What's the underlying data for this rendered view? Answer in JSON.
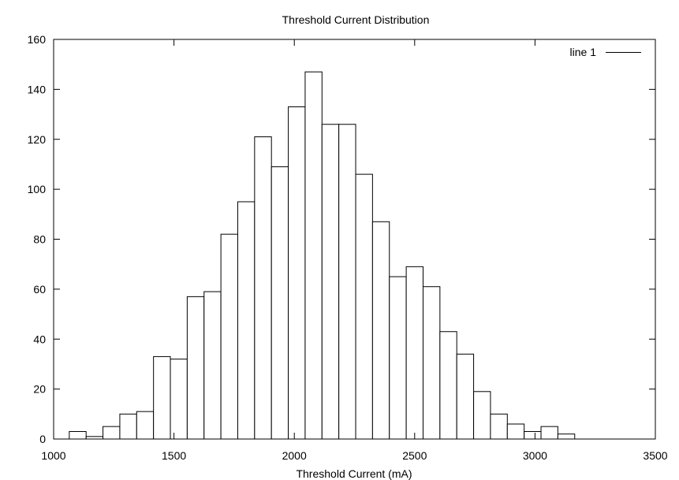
{
  "chart_data": {
    "type": "bar",
    "title": "Threshold Current Distribution",
    "xlabel": "Threshold Current (mA)",
    "ylabel": "",
    "xlim": [
      1000,
      3500
    ],
    "ylim": [
      0,
      160
    ],
    "xticks": [
      1000,
      1500,
      2000,
      2500,
      3000,
      3500
    ],
    "yticks": [
      0,
      20,
      40,
      60,
      80,
      100,
      120,
      140,
      160
    ],
    "bin_width": 70,
    "legend": {
      "position": "top-right",
      "entries": [
        "line 1"
      ]
    },
    "grid": false,
    "series": [
      {
        "name": "line 1",
        "bins": [
          {
            "x0": 1065,
            "x1": 1135,
            "value": 3
          },
          {
            "x0": 1135,
            "x1": 1205,
            "value": 1
          },
          {
            "x0": 1205,
            "x1": 1275,
            "value": 5
          },
          {
            "x0": 1275,
            "x1": 1345,
            "value": 10
          },
          {
            "x0": 1345,
            "x1": 1415,
            "value": 11
          },
          {
            "x0": 1415,
            "x1": 1485,
            "value": 33
          },
          {
            "x0": 1485,
            "x1": 1555,
            "value": 32
          },
          {
            "x0": 1555,
            "x1": 1625,
            "value": 57
          },
          {
            "x0": 1625,
            "x1": 1695,
            "value": 59
          },
          {
            "x0": 1695,
            "x1": 1765,
            "value": 82
          },
          {
            "x0": 1765,
            "x1": 1835,
            "value": 95
          },
          {
            "x0": 1835,
            "x1": 1905,
            "value": 121
          },
          {
            "x0": 1905,
            "x1": 1975,
            "value": 109
          },
          {
            "x0": 1975,
            "x1": 2045,
            "value": 133
          },
          {
            "x0": 2045,
            "x1": 2115,
            "value": 147
          },
          {
            "x0": 2115,
            "x1": 2185,
            "value": 126
          },
          {
            "x0": 2185,
            "x1": 2255,
            "value": 126
          },
          {
            "x0": 2255,
            "x1": 2325,
            "value": 106
          },
          {
            "x0": 2325,
            "x1": 2395,
            "value": 87
          },
          {
            "x0": 2395,
            "x1": 2465,
            "value": 65
          },
          {
            "x0": 2465,
            "x1": 2535,
            "value": 69
          },
          {
            "x0": 2535,
            "x1": 2605,
            "value": 61
          },
          {
            "x0": 2605,
            "x1": 2675,
            "value": 43
          },
          {
            "x0": 2675,
            "x1": 2745,
            "value": 34
          },
          {
            "x0": 2745,
            "x1": 2815,
            "value": 19
          },
          {
            "x0": 2815,
            "x1": 2885,
            "value": 10
          },
          {
            "x0": 2885,
            "x1": 2955,
            "value": 6
          },
          {
            "x0": 2955,
            "x1": 3025,
            "value": 3
          },
          {
            "x0": 3025,
            "x1": 3095,
            "value": 5
          },
          {
            "x0": 3095,
            "x1": 3165,
            "value": 2
          }
        ]
      }
    ]
  }
}
